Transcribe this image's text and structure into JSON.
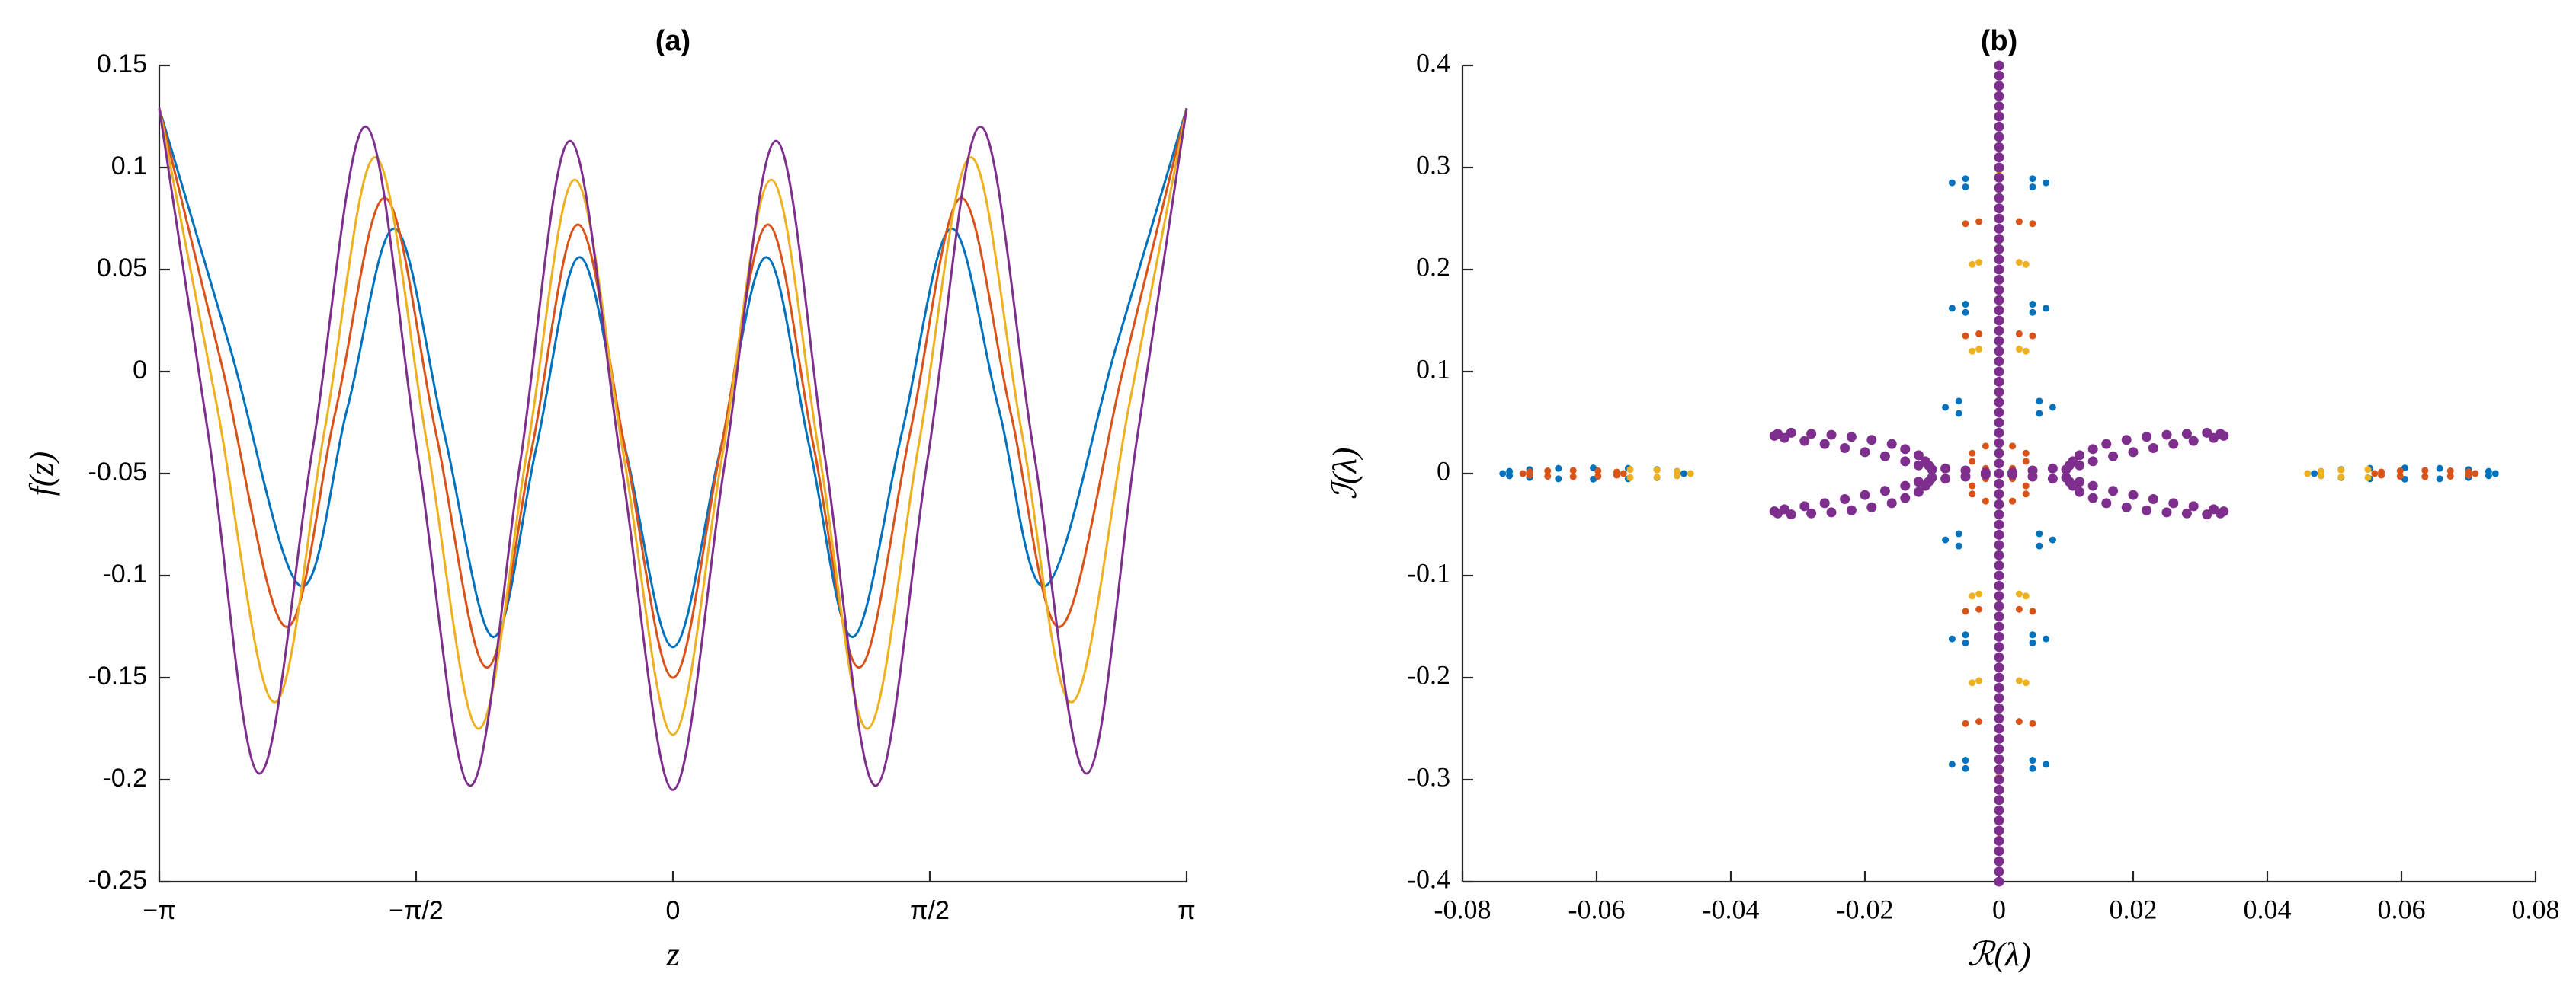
{
  "chart_data": [
    {
      "type": "line",
      "title": "(a)",
      "x_label": "z",
      "y_label": "f(z)",
      "xlim": [
        -3.14159,
        3.14159
      ],
      "xticks": [
        {
          "value": -3.14159,
          "label": "−π"
        },
        {
          "value": -1.5708,
          "label": "−π/2"
        },
        0,
        {
          "value": 1.5708,
          "label": "π/2"
        },
        {
          "value": 3.14159,
          "label": "π"
        }
      ],
      "ylim": [
        -0.25,
        0.15
      ],
      "yticks": [
        -0.25,
        -0.2,
        -0.15,
        -0.1,
        -0.05,
        0,
        0.05,
        0.1,
        0.15
      ],
      "series": [
        {
          "color": "#0072bd",
          "x": [
            -3.14159,
            -2.71,
            -2.28,
            -1.99,
            -1.7,
            -1.4,
            -1.1,
            -0.835,
            -0.57,
            -0.285,
            0,
            0.285,
            0.57,
            0.835,
            1.1,
            1.4,
            1.7,
            1.99,
            2.28,
            2.71,
            3.14159
          ],
          "values": [
            0.129,
            0.012,
            -0.105,
            -0.0175,
            0.07,
            -0.03,
            -0.13,
            -0.037,
            0.056,
            -0.04,
            -0.135,
            -0.04,
            0.056,
            -0.037,
            -0.13,
            -0.03,
            0.07,
            -0.0175,
            -0.105,
            0.012,
            0.129
          ]
        },
        {
          "color": "#d95319",
          "x": [
            -3.14159,
            -2.756,
            -2.37,
            -2.065,
            -1.76,
            -1.45,
            -1.14,
            -0.86,
            -0.58,
            -0.29,
            0,
            0.29,
            0.58,
            0.86,
            1.14,
            1.45,
            1.76,
            2.065,
            2.37,
            2.756,
            3.14159
          ],
          "values": [
            0.129,
            0.002,
            -0.125,
            -0.02,
            0.085,
            -0.03,
            -0.145,
            -0.0365,
            0.072,
            -0.039,
            -0.15,
            -0.039,
            0.072,
            -0.0365,
            -0.145,
            -0.03,
            0.085,
            -0.02,
            -0.125,
            0.002,
            0.129
          ]
        },
        {
          "color": "#edb120",
          "x": [
            -3.14159,
            -2.79,
            -2.44,
            -2.13,
            -1.82,
            -1.505,
            -1.19,
            -0.895,
            -0.6,
            -0.3,
            0,
            0.3,
            0.6,
            0.895,
            1.19,
            1.505,
            1.82,
            2.13,
            2.44,
            2.79,
            3.14159
          ],
          "values": [
            0.129,
            -0.0165,
            -0.162,
            -0.0285,
            0.105,
            -0.035,
            -0.175,
            -0.0405,
            0.094,
            -0.042,
            -0.178,
            -0.042,
            0.094,
            -0.0405,
            -0.175,
            -0.035,
            0.105,
            -0.0285,
            -0.162,
            -0.0165,
            0.129
          ]
        },
        {
          "color": "#7e2f8e",
          "x": [
            -3.14159,
            -2.836,
            -2.53,
            -2.205,
            -1.88,
            -1.56,
            -1.24,
            -0.935,
            -0.63,
            -0.315,
            0,
            0.315,
            0.63,
            0.935,
            1.24,
            1.56,
            1.88,
            2.205,
            2.53,
            2.836,
            3.14159
          ],
          "values": [
            0.129,
            -0.034,
            -0.197,
            -0.0385,
            0.12,
            -0.0415,
            -0.203,
            -0.045,
            0.113,
            -0.046,
            -0.205,
            -0.046,
            0.113,
            -0.045,
            -0.203,
            -0.0415,
            0.12,
            -0.0385,
            -0.197,
            -0.034,
            0.129
          ]
        }
      ]
    },
    {
      "type": "scatter",
      "title": "(b)",
      "x_label": "ℛ(λ)",
      "y_label": "ℐ(λ)",
      "xlim": [
        -0.08,
        0.08
      ],
      "xticks": [
        -0.08,
        -0.06,
        -0.04,
        -0.02,
        0,
        0.02,
        0.04,
        0.06,
        0.08
      ],
      "ylim": [
        -0.4,
        0.4
      ],
      "yticks": [
        -0.4,
        -0.3,
        -0.2,
        -0.1,
        0,
        0.1,
        0.2,
        0.3,
        0.4
      ],
      "series": [
        {
          "color": "#0072bd",
          "x": [
            -0.047,
            -0.048,
            -0.051,
            -0.0553,
            -0.0605,
            -0.0657,
            -0.07,
            -0.073,
            -0.074,
            -0.073,
            -0.07,
            -0.0657,
            -0.0605,
            -0.0553,
            -0.051,
            -0.048,
            0.047,
            0.048,
            0.051,
            0.0553,
            0.0605,
            0.0657,
            0.07,
            0.073,
            0.074,
            0.073,
            0.07,
            0.0657,
            0.0605,
            0.0553,
            0.051,
            0.048,
            -0.007,
            -0.005,
            -0.005,
            0.005,
            0.005,
            0.007,
            -0.007,
            -0.005,
            -0.005,
            0.005,
            0.005,
            0.007,
            -0.008,
            -0.006,
            -0.006,
            0.006,
            0.006,
            0.008,
            -0.008,
            -0.006,
            -0.006,
            0.006,
            0.006,
            0.008,
            -0.007,
            -0.005,
            -0.005,
            0.005,
            0.005,
            0.007,
            -0.007,
            -0.005,
            -0.005,
            0.005,
            0.005,
            0.007,
            0,
            0
          ],
          "y": [
            0,
            0.0021,
            0.0039,
            0.0051,
            0.0055,
            0.0051,
            0.0039,
            0.0021,
            0,
            -0.0021,
            -0.0039,
            -0.0051,
            -0.0055,
            -0.0051,
            -0.0039,
            -0.0021,
            0,
            0.0021,
            0.0039,
            0.0051,
            0.0055,
            0.0051,
            0.0039,
            0.0021,
            0,
            -0.0021,
            -0.0039,
            -0.0051,
            -0.0055,
            -0.0051,
            -0.0039,
            -0.0021,
            0.285,
            0.289,
            0.281,
            0.289,
            0.281,
            0.285,
            0.162,
            0.166,
            0.158,
            0.166,
            0.158,
            0.162,
            0.065,
            0.071,
            0.059,
            0.071,
            0.059,
            0.065,
            -0.065,
            -0.059,
            -0.071,
            -0.059,
            -0.071,
            -0.065,
            -0.162,
            -0.158,
            -0.166,
            -0.158,
            -0.166,
            -0.162,
            -0.285,
            -0.281,
            -0.289,
            -0.281,
            -0.289,
            -0.285,
            0.4,
            -0.4
          ]
        },
        {
          "color": "#d95319",
          "x": [
            -0.056,
            -0.057,
            -0.0598,
            -0.0635,
            -0.0673,
            -0.07,
            -0.071,
            -0.07,
            -0.0673,
            -0.0635,
            -0.0598,
            -0.057,
            0.056,
            0.057,
            0.0598,
            0.0635,
            0.0673,
            0.07,
            0.071,
            0.07,
            0.0673,
            0.0635,
            0.0598,
            0.057,
            0.002,
            0.004,
            0.004,
            0.002,
            0,
            -0.002,
            -0.004,
            -0.004,
            -0.002,
            0.002,
            0.004,
            0.004,
            0.002,
            0,
            -0.002,
            -0.004,
            -0.004,
            -0.002,
            -0.005,
            -0.003,
            0.003,
            0.005,
            -0.005,
            -0.003,
            0.003,
            0.005,
            -0.005,
            -0.003,
            0.003,
            0.005,
            -0.005,
            -0.003,
            0.003,
            0.005,
            0,
            0
          ],
          "y": [
            0,
            0.0015,
            0.0026,
            0.003,
            0.0026,
            0.0015,
            0,
            -0.0015,
            -0.0026,
            -0.003,
            -0.0026,
            -0.0015,
            0,
            0.0015,
            0.0026,
            0.003,
            0.0026,
            0.0015,
            0,
            -0.0015,
            -0.0026,
            -0.003,
            -0.0026,
            -0.0015,
            0.005,
            0.012,
            0.02,
            0.027,
            0.03,
            0.027,
            0.02,
            0.012,
            0.005,
            -0.005,
            -0.012,
            -0.02,
            -0.027,
            -0.03,
            -0.027,
            -0.02,
            -0.012,
            -0.005,
            0.245,
            0.247,
            0.247,
            0.245,
            0.135,
            0.137,
            0.137,
            0.135,
            -0.135,
            -0.133,
            -0.133,
            -0.135,
            -0.245,
            -0.243,
            -0.243,
            -0.245,
            0.352,
            -0.352
          ]
        },
        {
          "color": "#edb120",
          "x": [
            -0.055,
            -0.051,
            -0.048,
            -0.046,
            -0.048,
            -0.051,
            -0.055,
            0.055,
            0.051,
            0.048,
            0.046,
            0.048,
            0.051,
            0.055,
            -0.004,
            -0.003,
            0.003,
            0.004,
            -0.004,
            -0.003,
            0.003,
            0.004,
            -0.004,
            -0.003,
            0.003,
            0.004,
            -0.004,
            -0.003,
            0.003,
            0.004,
            0,
            0
          ],
          "y": [
            0.004,
            0.0035,
            0.002,
            0,
            -0.002,
            -0.0035,
            -0.004,
            0.004,
            0.0035,
            0.002,
            0,
            -0.002,
            -0.0035,
            -0.004,
            0.205,
            0.207,
            0.207,
            0.205,
            0.12,
            0.122,
            0.122,
            0.12,
            -0.12,
            -0.118,
            -0.118,
            -0.12,
            -0.205,
            -0.203,
            -0.203,
            -0.205,
            0.297,
            -0.297
          ]
        },
        {
          "color": "#7e2f8e",
          "x": [
            0,
            0,
            0,
            0,
            0,
            0,
            0,
            0,
            0,
            0,
            0,
            0,
            0,
            0,
            0,
            0,
            0,
            0,
            0,
            0,
            0,
            0,
            0,
            0,
            0,
            0,
            0,
            0,
            0,
            0,
            0,
            0,
            0,
            0,
            0,
            0,
            0,
            0,
            0,
            0,
            0,
            0,
            0,
            0,
            0,
            0,
            0,
            0,
            0,
            0,
            0,
            0,
            0,
            0,
            0,
            0,
            0,
            0,
            0,
            0,
            0,
            0,
            0,
            0,
            0,
            0,
            0,
            0,
            0,
            0,
            0,
            0,
            0,
            0,
            0,
            0,
            0,
            0,
            0,
            0,
            0,
            0.002,
            0.005,
            0.008,
            0.0105,
            0.011,
            0.012,
            0.014,
            0.016,
            0.019,
            0.022,
            0.025,
            0.028,
            0.031,
            0.033,
            0.0335,
            0.032,
            0.029,
            0.026,
            0.023,
            0.02,
            0.017,
            0.014,
            0.012,
            0.01,
            0.002,
            0.005,
            0.008,
            0.0105,
            0.011,
            0.012,
            0.014,
            0.016,
            0.019,
            0.022,
            0.025,
            0.028,
            0.031,
            0.033,
            0.0335,
            0.032,
            0.029,
            0.026,
            0.023,
            0.02,
            0.017,
            0.014,
            0.012,
            0.01,
            -0.002,
            -0.005,
            -0.008,
            -0.0105,
            -0.011,
            -0.012,
            -0.014,
            -0.016,
            -0.019,
            -0.022,
            -0.025,
            -0.028,
            -0.031,
            -0.033,
            -0.0335,
            -0.032,
            -0.029,
            -0.026,
            -0.023,
            -0.02,
            -0.017,
            -0.014,
            -0.012,
            -0.01,
            -0.002,
            -0.005,
            -0.008,
            -0.0105,
            -0.011,
            -0.012,
            -0.014,
            -0.016,
            -0.019,
            -0.022,
            -0.025,
            -0.028,
            -0.031,
            -0.033,
            -0.0335,
            -0.032,
            -0.029,
            -0.026,
            -0.023,
            -0.02,
            -0.017,
            -0.014,
            -0.012,
            -0.01
          ],
          "y": [
            -0.4,
            -0.39,
            -0.38,
            -0.37,
            -0.36,
            -0.35,
            -0.34,
            -0.33,
            -0.32,
            -0.31,
            -0.3,
            -0.29,
            -0.28,
            -0.27,
            -0.26,
            -0.25,
            -0.24,
            -0.23,
            -0.22,
            -0.21,
            -0.2,
            -0.19,
            -0.18,
            -0.17,
            -0.16,
            -0.15,
            -0.14,
            -0.13,
            -0.12,
            -0.11,
            -0.1,
            -0.09,
            -0.08,
            -0.07,
            -0.06,
            -0.05,
            -0.04,
            -0.03,
            -0.02,
            -0.01,
            0,
            0.01,
            0.02,
            0.03,
            0.04,
            0.05,
            0.06,
            0.07,
            0.08,
            0.09,
            0.1,
            0.11,
            0.12,
            0.13,
            0.14,
            0.15,
            0.16,
            0.17,
            0.18,
            0.19,
            0.2,
            0.21,
            0.22,
            0.23,
            0.24,
            0.25,
            0.26,
            0.27,
            0.28,
            0.29,
            0.3,
            0.31,
            0.32,
            0.33,
            0.34,
            0.35,
            0.36,
            0.37,
            0.38,
            0.39,
            0.4,
            0.001,
            0.003,
            0.005,
            0.008,
            0.012,
            0.018,
            0.024,
            0.029,
            0.033,
            0.036,
            0.038,
            0.039,
            0.04,
            0.039,
            0.037,
            0.035,
            0.032,
            0.029,
            0.025,
            0.021,
            0.017,
            0.012,
            0.008,
            0.004,
            -0.001,
            -0.003,
            -0.005,
            -0.008,
            -0.012,
            -0.018,
            -0.024,
            -0.029,
            -0.033,
            -0.036,
            -0.038,
            -0.039,
            -0.04,
            -0.039,
            -0.037,
            -0.035,
            -0.032,
            -0.029,
            -0.025,
            -0.021,
            -0.017,
            -0.012,
            -0.008,
            -0.004,
            0.001,
            0.003,
            0.005,
            0.008,
            0.012,
            0.018,
            0.024,
            0.029,
            0.033,
            0.036,
            0.038,
            0.039,
            0.04,
            0.039,
            0.037,
            0.035,
            0.032,
            0.029,
            0.025,
            0.021,
            0.017,
            0.012,
            0.008,
            0.004,
            -0.001,
            -0.003,
            -0.005,
            -0.008,
            -0.012,
            -0.018,
            -0.024,
            -0.029,
            -0.033,
            -0.036,
            -0.038,
            -0.039,
            -0.04,
            -0.039,
            -0.037,
            -0.035,
            -0.032,
            -0.029,
            -0.025,
            -0.021,
            -0.017,
            -0.012,
            -0.008,
            -0.004
          ]
        }
      ]
    }
  ]
}
